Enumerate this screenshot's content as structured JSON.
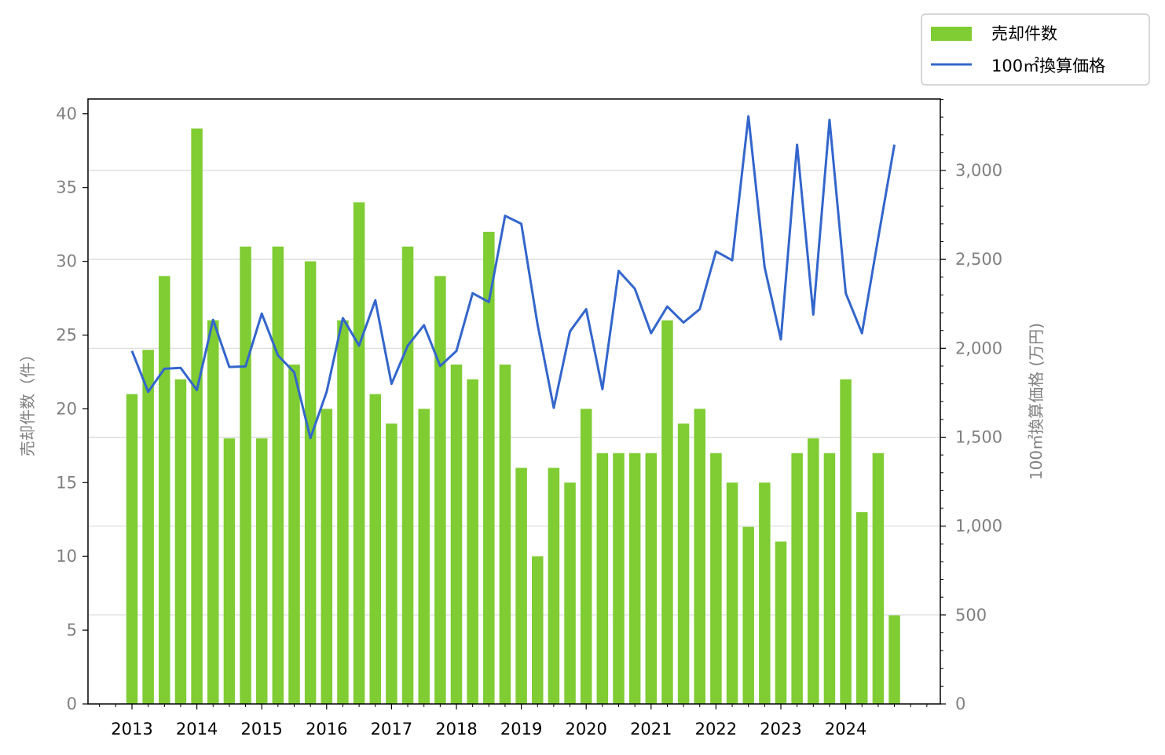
{
  "chart_data": {
    "type": "bar",
    "x": [
      "2013-Q1",
      "2013-Q2",
      "2013-Q3",
      "2013-Q4",
      "2014-Q1",
      "2014-Q2",
      "2014-Q3",
      "2014-Q4",
      "2015-Q1",
      "2015-Q2",
      "2015-Q3",
      "2015-Q4",
      "2016-Q1",
      "2016-Q2",
      "2016-Q3",
      "2016-Q4",
      "2017-Q1",
      "2017-Q2",
      "2017-Q3",
      "2017-Q4",
      "2018-Q1",
      "2018-Q2",
      "2018-Q3",
      "2018-Q4",
      "2019-Q1",
      "2019-Q2",
      "2019-Q3",
      "2019-Q4",
      "2020-Q1",
      "2020-Q2",
      "2020-Q3",
      "2020-Q4",
      "2021-Q1",
      "2021-Q2",
      "2021-Q3",
      "2021-Q4",
      "2022-Q1",
      "2022-Q2",
      "2022-Q3",
      "2022-Q4",
      "2023-Q1",
      "2023-Q2",
      "2023-Q3",
      "2023-Q4",
      "2024-Q1",
      "2024-Q2",
      "2024-Q3",
      "2024-Q4"
    ],
    "x_tick_labels": [
      "2013",
      "2014",
      "2015",
      "2016",
      "2017",
      "2018",
      "2019",
      "2020",
      "2021",
      "2022",
      "2023",
      "2024"
    ],
    "series": [
      {
        "name": "売却件数",
        "type": "bar",
        "axis": "left",
        "color": "#7fcc33",
        "values": [
          21,
          24,
          29,
          22,
          39,
          26,
          18,
          31,
          18,
          31,
          23,
          30,
          20,
          26,
          34,
          21,
          19,
          31,
          20,
          29,
          23,
          22,
          32,
          23,
          16,
          10,
          16,
          15,
          20,
          17,
          17,
          17,
          17,
          26,
          19,
          20,
          17,
          15,
          12,
          15,
          11,
          17,
          18,
          17,
          22,
          13,
          17,
          6
        ]
      },
      {
        "name": "100㎡換算価格",
        "type": "line",
        "axis": "right",
        "color": "#3366cc",
        "values": [
          1985,
          1755,
          1885,
          1890,
          1765,
          2160,
          1895,
          1898,
          2195,
          1960,
          1865,
          1495,
          1755,
          2170,
          2015,
          2270,
          1800,
          2015,
          2130,
          1900,
          1985,
          2310,
          2260,
          2745,
          2700,
          2135,
          1665,
          2095,
          2220,
          1770,
          2435,
          2335,
          2085,
          2235,
          2145,
          2220,
          2545,
          2495,
          3305,
          2455,
          2050,
          3145,
          2190,
          3285,
          2310,
          2085,
          2620,
          3145
        ]
      }
    ],
    "ylabel_left": "売却件数（件）",
    "ylabel_right": "100㎡換算価格 (万円)",
    "ylim_left": [
      0,
      41
    ],
    "yticks_left": [
      "0",
      "5",
      "10",
      "15",
      "20",
      "25",
      "30",
      "35",
      "40"
    ],
    "ylim_right": [
      0,
      3402
    ],
    "yticks_right": [
      "0",
      "500",
      "1,000",
      "1,500",
      "2,000",
      "2,500",
      "3,000"
    ],
    "grid": "horizontal, right axis",
    "legend_placement": "top-right, above plot"
  }
}
